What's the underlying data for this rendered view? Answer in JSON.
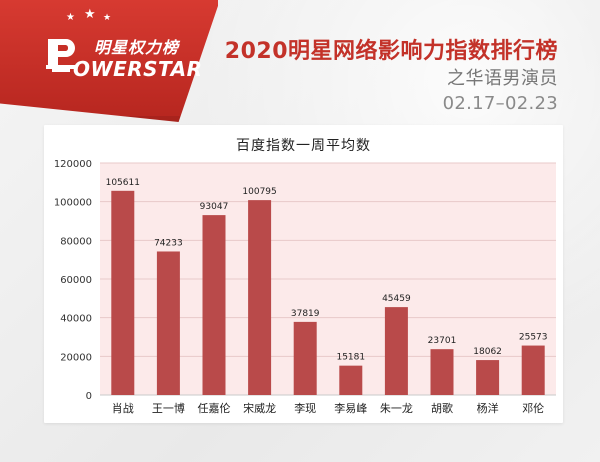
{
  "brand": {
    "logo_zh": "明星权力榜",
    "logo_en": "OWERSTAR",
    "logo_icon": "trophy-p-icon",
    "star_icon": "star-icon"
  },
  "header": {
    "title": "2020明星网络影响力指数排行榜",
    "subtitle": "之华语男演员",
    "date_range": "02.17–02.23"
  },
  "colors": {
    "accent": "#c33229",
    "bar": "#b94a4a",
    "plot_bg": "#fceaea",
    "grid": "#e8c9c9"
  },
  "chart_data": {
    "type": "bar",
    "title": "百度指数一周平均数",
    "categories": [
      "肖战",
      "王一博",
      "任嘉伦",
      "宋威龙",
      "李现",
      "李易峰",
      "朱一龙",
      "胡歌",
      "杨洋",
      "邓伦"
    ],
    "values": [
      105611,
      74233,
      93047,
      100795,
      37819,
      15181,
      45459,
      23701,
      18062,
      25573
    ],
    "ylim": [
      0,
      120000
    ],
    "yticks": [
      0,
      20000,
      40000,
      60000,
      80000,
      100000,
      120000
    ],
    "grid": true,
    "legend": "none",
    "xlabel": "",
    "ylabel": ""
  }
}
